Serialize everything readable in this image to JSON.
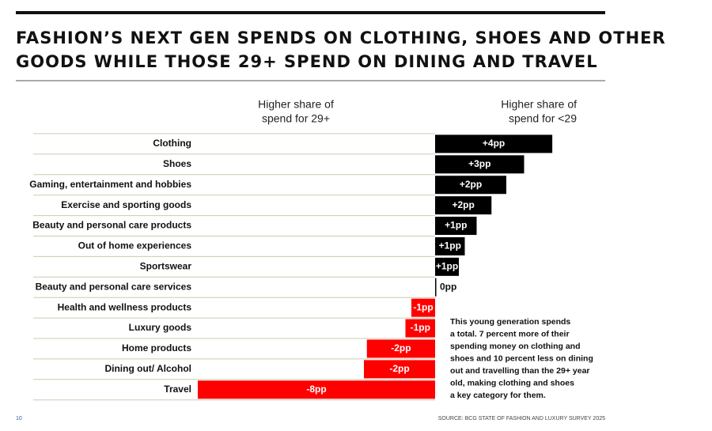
{
  "chart_data": {
    "type": "bar",
    "orientation": "horizontal",
    "title": [
      "FASHION’S NEXT GEN SPENDS ON CLOTHING, SHOES AND OTHER",
      "GOODS WHILE THOSE 29+ SPEND ON DINING AND TRAVEL"
    ],
    "left_header": [
      "Higher share of",
      "spend for 29+"
    ],
    "right_header": [
      "Higher share of",
      "spend for <29"
    ],
    "categories": [
      "Clothing",
      "Shoes",
      "Gaming, entertainment and hobbies",
      "Exercise and sporting goods",
      "Beauty and personal care products",
      "Out of home experiences",
      "Sportswear",
      "Beauty and personal care services",
      "Health and wellness products",
      "Luxury goods",
      "Home products",
      "Dining out/ Alcohol",
      "Travel"
    ],
    "values": [
      3.95,
      3.0,
      2.4,
      1.9,
      1.4,
      1.0,
      0.8,
      0.04,
      -0.8,
      -1.0,
      -2.3,
      -2.4,
      -8.0
    ],
    "value_labels": [
      "+4pp",
      "+3pp",
      "+2pp",
      "+2pp",
      "+1pp",
      "+1pp",
      "+1pp",
      "0pp",
      "-1pp",
      "-1pp",
      "-2pp",
      "-2pp",
      "-8pp"
    ],
    "positive_color": "#000000",
    "negative_color": "#ff0000",
    "annotation": [
      "This young generation spends",
      "a total. 7 percent more of their",
      "spending money on clothing and",
      "shoes and 10 percent less on dining",
      "out and travelling than the 29+ year",
      "old, making clothing and shoes",
      "a key category for them."
    ],
    "page_number": "10",
    "source": "SOURCE: BCG STATE OF FASHION AND LUXURY SURVEY 2025"
  }
}
